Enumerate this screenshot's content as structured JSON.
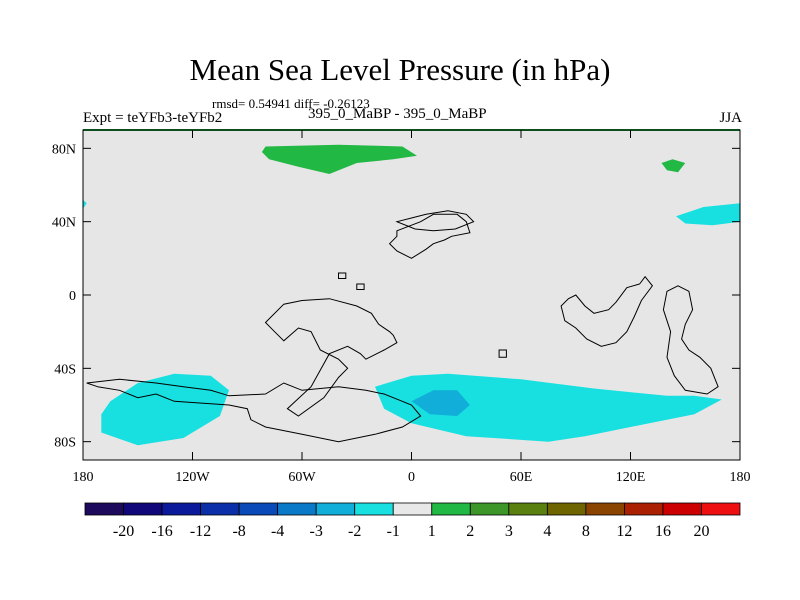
{
  "chart_data": {
    "type": "heatmap",
    "title": "Mean Sea Level Pressure (in hPa)",
    "stats_text": "rmsd= 0.54941 diff= -0.26123",
    "left_label": "Expt = teYFb3-teYFb2",
    "center_label": "395_0_MaBP - 395_0_MaBP",
    "right_label": "JJA",
    "x_ticks": [
      {
        "value": -180,
        "label": "180"
      },
      {
        "value": -120,
        "label": "120W"
      },
      {
        "value": -60,
        "label": "60W"
      },
      {
        "value": 0,
        "label": "0"
      },
      {
        "value": 60,
        "label": "60E"
      },
      {
        "value": 120,
        "label": "120E"
      },
      {
        "value": 180,
        "label": "180"
      }
    ],
    "y_ticks": [
      {
        "value": 80,
        "label": "80N"
      },
      {
        "value": 40,
        "label": "40N"
      },
      {
        "value": 0,
        "label": "0"
      },
      {
        "value": -40,
        "label": "40S"
      },
      {
        "value": -80,
        "label": "80S"
      }
    ],
    "xlim": [
      -180,
      180
    ],
    "ylim": [
      -90,
      90
    ],
    "background_color": "#e6e6e6",
    "colorbar": {
      "labels": [
        "-20",
        "-16",
        "-12",
        "-8",
        "-4",
        "-3",
        "-2",
        "-1",
        "1",
        "2",
        "3",
        "4",
        "8",
        "12",
        "16",
        "20"
      ],
      "colors": [
        "#1e0a5c",
        "#10087a",
        "#0a1a9a",
        "#0a2fa8",
        "#0a4ab8",
        "#0a7ac8",
        "#10aed8",
        "#18e0e0",
        "#e8e8e8",
        "#22b844",
        "#3c9628",
        "#5a8010",
        "#6e6400",
        "#8a4400",
        "#aa2000",
        "#cc0000",
        "#ee1010"
      ]
    },
    "regions": [
      {
        "name": "north-atlantic-arctic-positive",
        "color": "#22b844",
        "points": [
          [
            -80,
            81
          ],
          [
            -40,
            82
          ],
          [
            -5,
            81
          ],
          [
            3,
            76
          ],
          [
            -10,
            74
          ],
          [
            -30,
            72
          ],
          [
            -45,
            66
          ],
          [
            -62,
            70
          ],
          [
            -78,
            74
          ],
          [
            -82,
            78
          ]
        ]
      },
      {
        "name": "siberia-arctic-positive",
        "color": "#22b844",
        "points": [
          [
            137,
            72
          ],
          [
            143,
            74
          ],
          [
            150,
            72
          ],
          [
            146,
            67
          ],
          [
            140,
            68
          ]
        ]
      },
      {
        "name": "north-pacific-negative",
        "color": "#18e0e0",
        "points": [
          [
            145,
            43
          ],
          [
            160,
            48
          ],
          [
            180,
            50
          ],
          [
            180,
            40
          ],
          [
            165,
            38
          ],
          [
            150,
            39
          ]
        ]
      },
      {
        "name": "date-line-west-negative",
        "color": "#18e0e0",
        "points": [
          [
            -180,
            52
          ],
          [
            -178,
            50
          ],
          [
            -180,
            47
          ]
        ]
      },
      {
        "name": "south-pacific-negative",
        "color": "#18e0e0",
        "points": [
          [
            -165,
            -58
          ],
          [
            -150,
            -48
          ],
          [
            -130,
            -43
          ],
          [
            -110,
            -44
          ],
          [
            -100,
            -52
          ],
          [
            -105,
            -66
          ],
          [
            -125,
            -78
          ],
          [
            -150,
            -82
          ],
          [
            -170,
            -75
          ],
          [
            -170,
            -65
          ]
        ]
      },
      {
        "name": "southern-indian-ocean-negative",
        "color": "#18e0e0",
        "points": [
          [
            -20,
            -50
          ],
          [
            0,
            -44
          ],
          [
            20,
            -43
          ],
          [
            60,
            -46
          ],
          [
            100,
            -51
          ],
          [
            140,
            -55
          ],
          [
            155,
            -55
          ],
          [
            170,
            -57
          ],
          [
            155,
            -65
          ],
          [
            120,
            -72
          ],
          [
            95,
            -77
          ],
          [
            75,
            -80
          ],
          [
            30,
            -77
          ],
          [
            0,
            -70
          ],
          [
            -15,
            -62
          ]
        ]
      },
      {
        "name": "indian-ocean-core-negative",
        "color": "#10aed8",
        "points": [
          [
            0,
            -58
          ],
          [
            12,
            -52
          ],
          [
            25,
            -52
          ],
          [
            32,
            -60
          ],
          [
            25,
            -66
          ],
          [
            10,
            -65
          ]
        ]
      }
    ],
    "coastlines": [
      {
        "name": "africa-coast",
        "points": [
          [
            -8,
            35
          ],
          [
            5,
            40
          ],
          [
            12,
            44
          ],
          [
            25,
            44
          ],
          [
            30,
            40
          ],
          [
            32,
            34
          ],
          [
            22,
            32
          ],
          [
            18,
            30
          ],
          [
            12,
            28
          ],
          [
            8,
            25
          ],
          [
            0,
            20
          ],
          [
            -8,
            24
          ],
          [
            -12,
            28
          ],
          [
            -8,
            32
          ]
        ]
      },
      {
        "name": "south-america-coast",
        "points": [
          [
            -80,
            -15
          ],
          [
            -70,
            -5
          ],
          [
            -60,
            -3
          ],
          [
            -45,
            -2
          ],
          [
            -30,
            -6
          ],
          [
            -22,
            -10
          ],
          [
            -18,
            -16
          ],
          [
            -12,
            -20
          ],
          [
            -10,
            -22
          ],
          [
            -8,
            -26
          ],
          [
            -15,
            -30
          ],
          [
            -25,
            -35
          ],
          [
            -28,
            -32
          ],
          [
            -35,
            -28
          ],
          [
            -45,
            -32
          ],
          [
            -55,
            -50
          ],
          [
            -68,
            -62
          ],
          [
            -62,
            -66
          ],
          [
            -48,
            -56
          ],
          [
            -40,
            -45
          ],
          [
            -35,
            -40
          ],
          [
            -40,
            -35
          ],
          [
            -50,
            -30
          ],
          [
            -55,
            -20
          ],
          [
            -62,
            -18
          ],
          [
            -70,
            -25
          ],
          [
            -75,
            -20
          ]
        ]
      },
      {
        "name": "southern-continent-coast",
        "points": [
          [
            -172,
            -50
          ],
          [
            -160,
            -52
          ],
          [
            -150,
            -56
          ],
          [
            -140,
            -54
          ],
          [
            -130,
            -58
          ],
          [
            -100,
            -60
          ],
          [
            -90,
            -62
          ],
          [
            -88,
            -68
          ],
          [
            -80,
            -72
          ],
          [
            -60,
            -76
          ],
          [
            -40,
            -80
          ],
          [
            -20,
            -76
          ],
          [
            -5,
            -72
          ],
          [
            5,
            -66
          ],
          [
            0,
            -60
          ],
          [
            -10,
            -56
          ],
          [
            -15,
            -54
          ],
          [
            -25,
            -52
          ],
          [
            -40,
            -50
          ],
          [
            -60,
            -52
          ],
          [
            -70,
            -48
          ],
          [
            -80,
            -54
          ],
          [
            -100,
            -55
          ],
          [
            -110,
            -52
          ],
          [
            -125,
            -50
          ],
          [
            -140,
            -48
          ],
          [
            -160,
            -46
          ],
          [
            -178,
            -48
          ]
        ]
      },
      {
        "name": "east-continent-coast",
        "points": [
          [
            90,
            0
          ],
          [
            95,
            -6
          ],
          [
            100,
            -10
          ],
          [
            108,
            -8
          ],
          [
            112,
            -4
          ],
          [
            118,
            4
          ],
          [
            125,
            6
          ],
          [
            128,
            10
          ],
          [
            132,
            5
          ],
          [
            126,
            -3
          ],
          [
            122,
            -12
          ],
          [
            118,
            -20
          ],
          [
            112,
            -26
          ],
          [
            104,
            -28
          ],
          [
            96,
            -24
          ],
          [
            90,
            -18
          ],
          [
            84,
            -14
          ],
          [
            82,
            -6
          ],
          [
            86,
            -2
          ]
        ]
      },
      {
        "name": "east-continent-south-coast",
        "points": [
          [
            140,
            2
          ],
          [
            146,
            5
          ],
          [
            152,
            2
          ],
          [
            154,
            -8
          ],
          [
            150,
            -16
          ],
          [
            148,
            -24
          ],
          [
            152,
            -30
          ],
          [
            158,
            -34
          ],
          [
            164,
            -40
          ],
          [
            168,
            -50
          ],
          [
            162,
            -54
          ],
          [
            150,
            -52
          ],
          [
            144,
            -44
          ],
          [
            140,
            -34
          ],
          [
            142,
            -20
          ],
          [
            138,
            -8
          ]
        ]
      },
      {
        "name": "north-island",
        "points": [
          [
            -8,
            40
          ],
          [
            0,
            42
          ],
          [
            8,
            44
          ],
          [
            20,
            46
          ],
          [
            30,
            44
          ],
          [
            34,
            40
          ],
          [
            24,
            36
          ],
          [
            12,
            35
          ],
          [
            2,
            36
          ]
        ]
      },
      {
        "name": "small-island-a",
        "points": [
          [
            -40,
            12
          ],
          [
            -36,
            12
          ],
          [
            -36,
            9
          ],
          [
            -40,
            9
          ]
        ]
      },
      {
        "name": "small-island-b",
        "points": [
          [
            -30,
            6
          ],
          [
            -26,
            6
          ],
          [
            -26,
            3
          ],
          [
            -30,
            3
          ]
        ]
      },
      {
        "name": "small-island-c",
        "points": [
          [
            48,
            -30
          ],
          [
            52,
            -30
          ],
          [
            52,
            -34
          ],
          [
            48,
            -34
          ]
        ]
      }
    ]
  }
}
